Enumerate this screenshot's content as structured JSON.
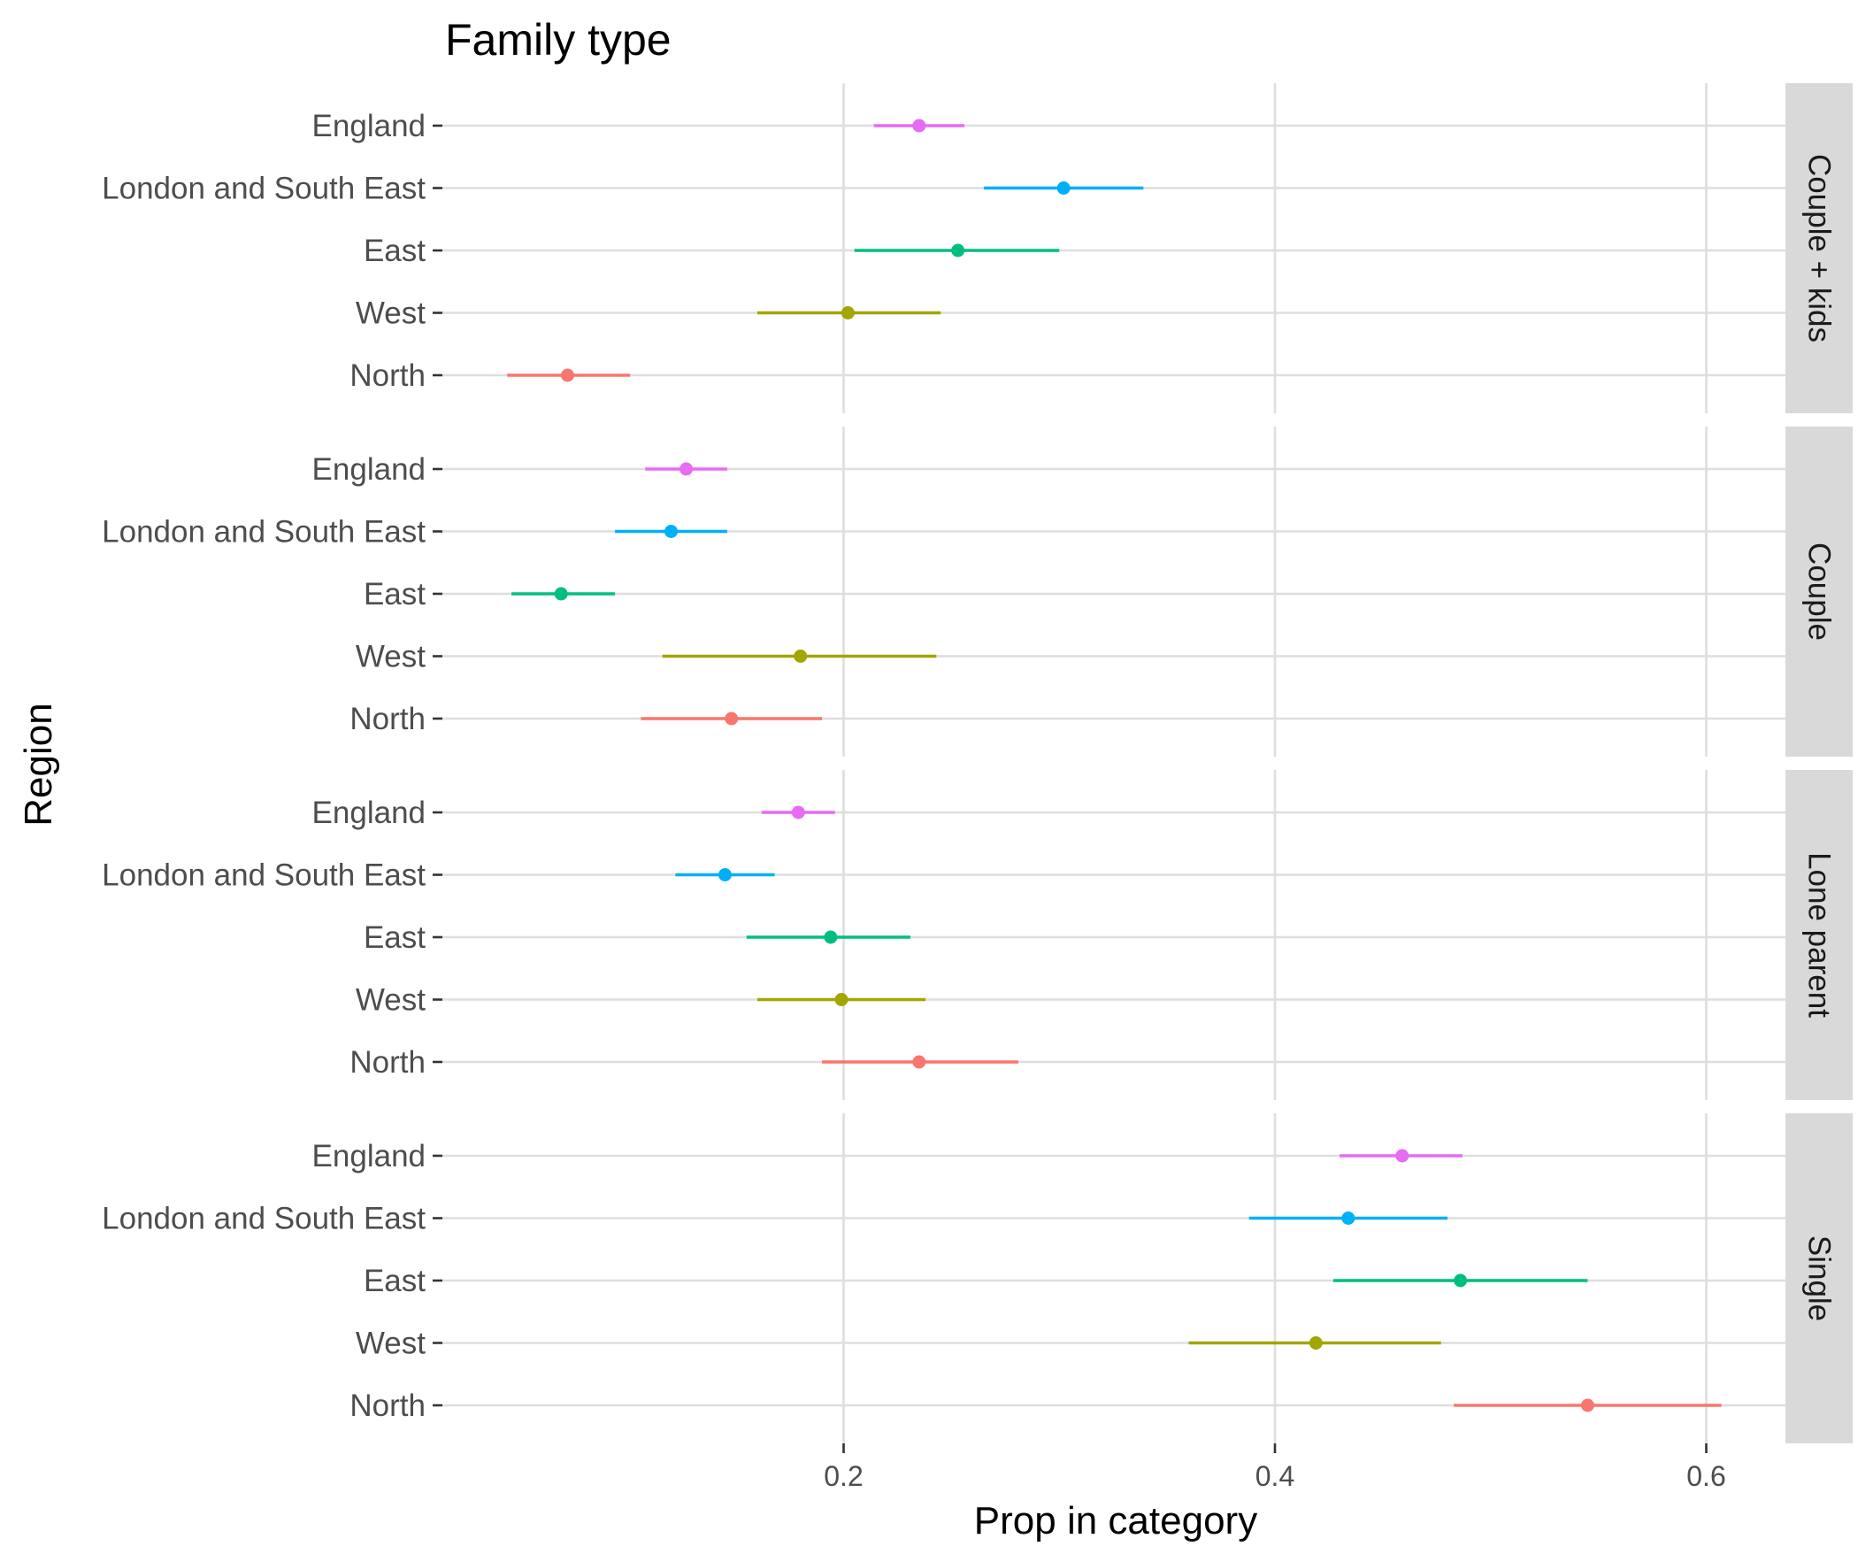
{
  "chart_data": {
    "type": "pointrange",
    "title": "Family type",
    "xlabel": "Prop in category",
    "ylabel": "Region",
    "xlim": [
      0.0,
      0.64
    ],
    "xticks": [
      0.2,
      0.4,
      0.6
    ],
    "xtick_labels": [
      "0.2",
      "0.4",
      "0.6"
    ],
    "regions": [
      "England",
      "London and South East",
      "East",
      "West",
      "North"
    ],
    "colors": {
      "England": "#E76BF3",
      "London and South East": "#00B0F6",
      "East": "#00BF7D",
      "West": "#A3A500",
      "North": "#F8766D"
    },
    "panels": [
      {
        "label": "Couple + kids",
        "points": [
          {
            "region": "England",
            "value": 0.235,
            "lower": 0.214,
            "upper": 0.256
          },
          {
            "region": "London and South East",
            "value": 0.302,
            "lower": 0.265,
            "upper": 0.339
          },
          {
            "region": "East",
            "value": 0.253,
            "lower": 0.205,
            "upper": 0.3
          },
          {
            "region": "West",
            "value": 0.202,
            "lower": 0.16,
            "upper": 0.245
          },
          {
            "region": "North",
            "value": 0.072,
            "lower": 0.044,
            "upper": 0.101
          }
        ]
      },
      {
        "label": "Couple",
        "points": [
          {
            "region": "England",
            "value": 0.127,
            "lower": 0.108,
            "upper": 0.146
          },
          {
            "region": "London and South East",
            "value": 0.12,
            "lower": 0.094,
            "upper": 0.146
          },
          {
            "region": "East",
            "value": 0.069,
            "lower": 0.046,
            "upper": 0.094
          },
          {
            "region": "West",
            "value": 0.18,
            "lower": 0.116,
            "upper": 0.243
          },
          {
            "region": "North",
            "value": 0.148,
            "lower": 0.106,
            "upper": 0.19
          }
        ]
      },
      {
        "label": "Lone parent",
        "points": [
          {
            "region": "England",
            "value": 0.179,
            "lower": 0.162,
            "upper": 0.196
          },
          {
            "region": "London and South East",
            "value": 0.145,
            "lower": 0.122,
            "upper": 0.168
          },
          {
            "region": "East",
            "value": 0.194,
            "lower": 0.155,
            "upper": 0.231
          },
          {
            "region": "West",
            "value": 0.199,
            "lower": 0.16,
            "upper": 0.238
          },
          {
            "region": "North",
            "value": 0.235,
            "lower": 0.19,
            "upper": 0.281
          }
        ]
      },
      {
        "label": "Single",
        "points": [
          {
            "region": "England",
            "value": 0.459,
            "lower": 0.43,
            "upper": 0.487
          },
          {
            "region": "London and South East",
            "value": 0.434,
            "lower": 0.388,
            "upper": 0.48
          },
          {
            "region": "East",
            "value": 0.486,
            "lower": 0.427,
            "upper": 0.545
          },
          {
            "region": "West",
            "value": 0.419,
            "lower": 0.36,
            "upper": 0.477
          },
          {
            "region": "North",
            "value": 0.545,
            "lower": 0.483,
            "upper": 0.607
          }
        ]
      }
    ]
  }
}
